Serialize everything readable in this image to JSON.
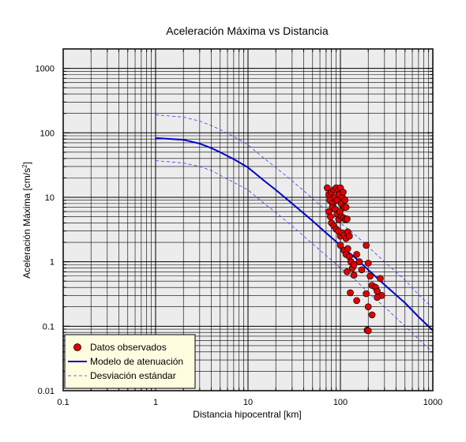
{
  "chart_data": {
    "type": "scatter",
    "title": "Aceleración Máxima vs Distancia",
    "xlabel": "Distancia hipocentral [km]",
    "ylabel_main": "Aceleración Máxima [cm/s",
    "ylabel_sup": "2",
    "ylabel_close": "]",
    "x_scale": "log",
    "y_scale": "log",
    "xlim": [
      0.1,
      1000
    ],
    "ylim": [
      0.01,
      2000
    ],
    "x_ticks": [
      0.1,
      1,
      10,
      100,
      1000
    ],
    "x_tick_labels": [
      "0.1",
      "1",
      "10",
      "100",
      "1000"
    ],
    "y_ticks": [
      0.01,
      0.1,
      1,
      10,
      100,
      1000
    ],
    "y_tick_labels": [
      "0.01",
      "0.1",
      "1",
      "10",
      "100",
      "1000"
    ],
    "grid": true,
    "legend_position": "bottom-left",
    "legend": [
      {
        "label": "Datos observados",
        "style": "marker"
      },
      {
        "label": "Modelo de atenuación",
        "style": "solid-line"
      },
      {
        "label": "Desviación estándar",
        "style": "dashed-line"
      }
    ],
    "colors": {
      "plot_background": "#ececec",
      "grid": "#000000",
      "points": "#e00000",
      "model_line": "#0000cc",
      "std_lines": "#3a3aff",
      "legend_background": "#fffde0"
    },
    "series": [
      {
        "name": "Modelo de atenuación",
        "kind": "line",
        "x": [
          1,
          2,
          3,
          4,
          5,
          7,
          10,
          15,
          20,
          30,
          50,
          70,
          100,
          150,
          200,
          300,
          500,
          700,
          1000
        ],
        "y": [
          83,
          78,
          68,
          58,
          50,
          39,
          29,
          18,
          13,
          8,
          4.3,
          2.8,
          1.8,
          1.1,
          0.75,
          0.44,
          0.23,
          0.14,
          0.086
        ]
      },
      {
        "name": "Desviación estándar",
        "kind": "dashed",
        "x": [
          1,
          2,
          3,
          4,
          5,
          7,
          10,
          15,
          20,
          30,
          50,
          70,
          100,
          150,
          200,
          300,
          500,
          700,
          1000
        ],
        "y": [
          190,
          175,
          152,
          130,
          112,
          88,
          65,
          40,
          29,
          18,
          9.6,
          6.2,
          4.0,
          2.5,
          1.7,
          1.0,
          0.52,
          0.31,
          0.19
        ]
      },
      {
        "name": "Desviación estándar",
        "kind": "dashed",
        "x": [
          1,
          2,
          3,
          4,
          5,
          7,
          10,
          15,
          20,
          30,
          50,
          70,
          100,
          150,
          200,
          300,
          500,
          700,
          1000
        ],
        "y": [
          37,
          34,
          30,
          26,
          22,
          17,
          13,
          8,
          5.8,
          3.6,
          1.9,
          1.25,
          0.8,
          0.5,
          0.33,
          0.2,
          0.1,
          0.063,
          0.039
        ]
      },
      {
        "name": "Datos observados",
        "kind": "points",
        "x": [
          72,
          75,
          77,
          80,
          82,
          85,
          87,
          90,
          92,
          95,
          97,
          100,
          102,
          105,
          107,
          110,
          112,
          115,
          75,
          78,
          82,
          88,
          92,
          96,
          99,
          103,
          108,
          113,
          118,
          80,
          85,
          90,
          95,
          100,
          105,
          110,
          115,
          120,
          125,
          100,
          110,
          115,
          120,
          125,
          130,
          135,
          140,
          150,
          160,
          170,
          190,
          200,
          118,
          128,
          140,
          150,
          210,
          220,
          240,
          250,
          270,
          280,
          190,
          200,
          220,
          250,
          195,
          200
        ],
        "y": [
          14,
          11,
          9,
          12,
          8,
          13,
          10,
          14,
          9,
          13,
          11,
          14,
          8,
          10,
          12,
          7,
          9,
          7,
          6,
          5,
          7,
          6.5,
          5.5,
          4.5,
          6,
          5,
          4.8,
          4.5,
          4.6,
          4,
          3.6,
          3.2,
          3,
          2.5,
          2.8,
          2.6,
          2.3,
          2.9,
          2.5,
          1.8,
          1.5,
          1.3,
          1.6,
          1.2,
          1.0,
          0.8,
          0.9,
          1.3,
          1.0,
          0.75,
          1.8,
          0.95,
          0.7,
          0.33,
          0.62,
          0.25,
          0.6,
          0.43,
          0.4,
          0.35,
          0.55,
          0.3,
          0.32,
          0.2,
          0.15,
          0.28,
          0.087,
          0.085
        ]
      }
    ]
  }
}
